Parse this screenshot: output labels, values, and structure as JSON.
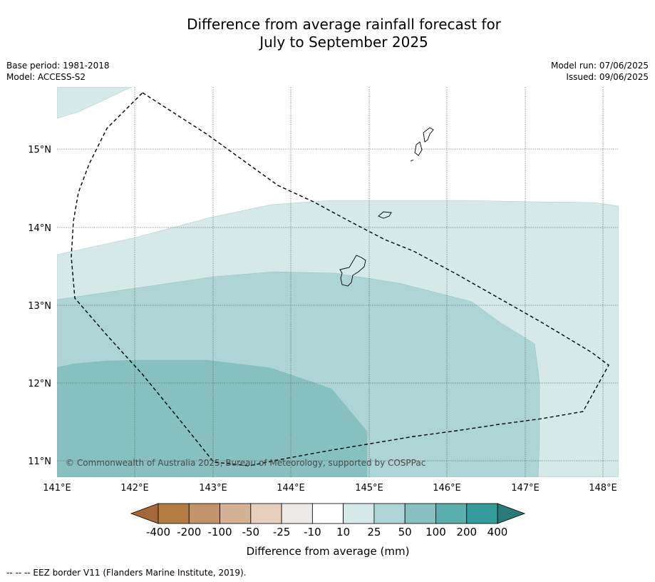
{
  "title": {
    "line1": "Difference from average rainfall forecast for",
    "line2": "July to September 2025"
  },
  "meta_left": {
    "base_period": "Base period: 1981-2018",
    "model": "Model: ACCESS-S2"
  },
  "meta_right": {
    "model_run": "Model run: 07/06/2025",
    "issued": "Issued: 09/06/2025"
  },
  "map": {
    "lon_range": [
      141.0,
      148.2
    ],
    "lat_range": [
      10.8,
      15.8
    ],
    "lon_ticks": [
      "141°E",
      "142°E",
      "143°E",
      "144°E",
      "145°E",
      "146°E",
      "147°E",
      "148°E"
    ],
    "lat_ticks": [
      "11°N",
      "12°N",
      "13°N",
      "14°N",
      "15°N"
    ],
    "copyright": "© Commonwealth of Australia 2025, Bureau of Meteorology, supported by COSPPac",
    "contour_colors": {
      "c10": "#d5eae8",
      "c25": "#add5d5",
      "c50": "#86c1c0"
    }
  },
  "colorbar": {
    "label": "Difference from average (mm)",
    "ticks": [
      "-400",
      "-200",
      "-100",
      "-50",
      "-25",
      "-10",
      "10",
      "25",
      "50",
      "100",
      "200",
      "400"
    ],
    "colors": [
      "#a5683a",
      "#b37b42",
      "#c19369",
      "#d4b293",
      "#e7cfbe",
      "#edebe8",
      "#ffffff",
      "#d5eae8",
      "#add5d5",
      "#86c1c0",
      "#5aaeae",
      "#349b9a",
      "#2a7a78"
    ]
  },
  "footnote": "-- -- -- EEZ border V11 (Flanders Marine Institute, 2019)."
}
